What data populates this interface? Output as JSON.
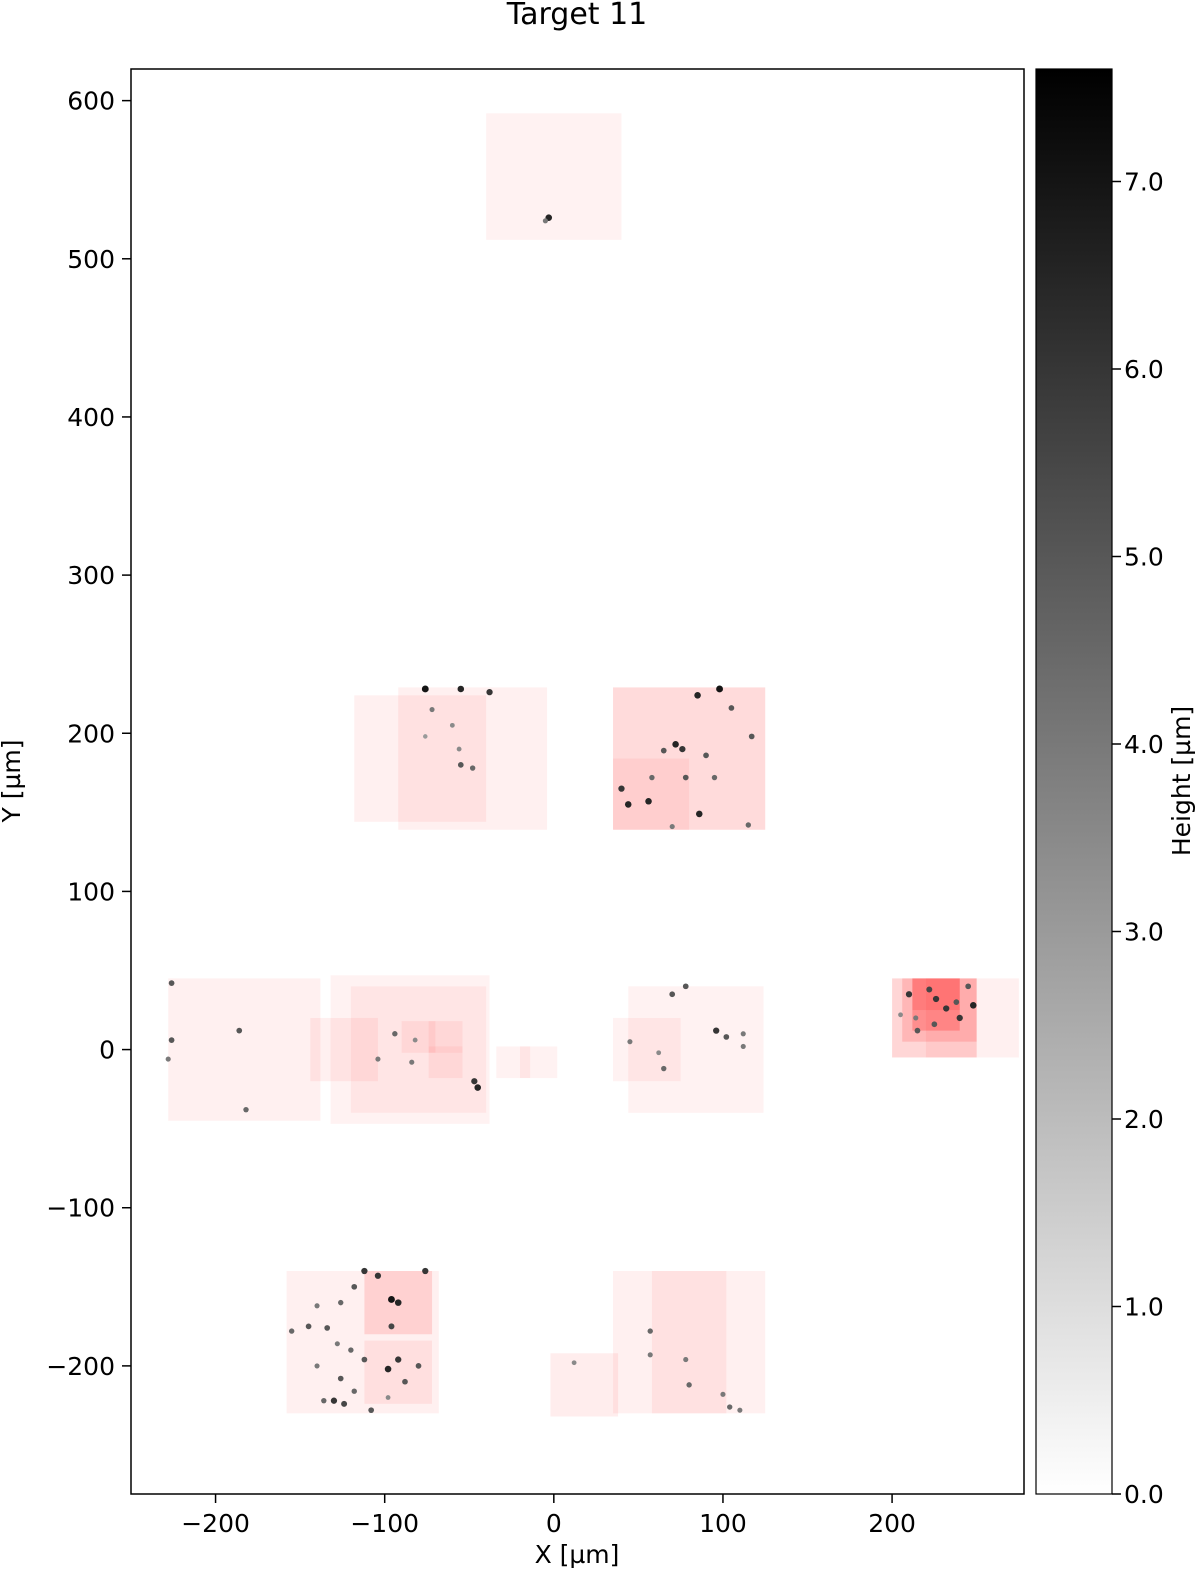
{
  "chart_data": {
    "type": "heatmap",
    "title": "Target 11",
    "xlabel": "X [µm]",
    "ylabel": "Y [µm]",
    "xlim": [
      -250,
      278
    ],
    "ylim": [
      -281,
      620
    ],
    "x_ticks": [
      -200,
      -100,
      0,
      100,
      200
    ],
    "x_tick_labels": [
      "−200",
      "−100",
      "0",
      "100",
      "200"
    ],
    "y_ticks": [
      -200,
      -100,
      0,
      100,
      200,
      300,
      400,
      500,
      600
    ],
    "y_tick_labels": [
      "−200",
      "−100",
      "0",
      "100",
      "200",
      "300",
      "400",
      "500",
      "600"
    ],
    "grid": false,
    "colorbar": {
      "label": "Height [µm]",
      "range": [
        0.0,
        7.6
      ],
      "ticks": [
        0,
        1,
        2,
        3,
        4,
        5,
        6,
        7
      ],
      "tick_labels": [
        "0.0",
        "1.0",
        "2.0",
        "3.0",
        "4.0",
        "5.0",
        "6.0",
        "7.0"
      ],
      "colormap": "gray_r"
    },
    "patch_color": "#ff0000",
    "patches": [
      {
        "x0": -40,
        "x1": 40,
        "y0": 512,
        "y1": 592,
        "opacity": 0.05
      },
      {
        "x0": -118,
        "x1": -40,
        "y0": 144,
        "y1": 224,
        "opacity": 0.06
      },
      {
        "x0": -92,
        "x1": -4,
        "y0": 139,
        "y1": 229,
        "opacity": 0.06
      },
      {
        "x0": 35,
        "x1": 125,
        "y0": 139,
        "y1": 229,
        "opacity": 0.14
      },
      {
        "x0": 35,
        "x1": 80,
        "y0": 139,
        "y1": 184,
        "opacity": 0.06
      },
      {
        "x0": -228,
        "x1": -138,
        "y0": -45,
        "y1": 45,
        "opacity": 0.06
      },
      {
        "x0": -132,
        "x1": -38,
        "y0": -47,
        "y1": 47,
        "opacity": 0.05
      },
      {
        "x0": -120,
        "x1": -40,
        "y0": -40,
        "y1": 40,
        "opacity": 0.05
      },
      {
        "x0": -144,
        "x1": -104,
        "y0": -20,
        "y1": 20,
        "opacity": 0.06
      },
      {
        "x0": -90,
        "x1": -70,
        "y0": -2,
        "y1": 18,
        "opacity": 0.06
      },
      {
        "x0": -74,
        "x1": -54,
        "y0": -18,
        "y1": 18,
        "opacity": 0.06
      },
      {
        "x0": -74,
        "x1": -54,
        "y0": -2,
        "y1": 2,
        "opacity": 0.05
      },
      {
        "x0": -34,
        "x1": -14,
        "y0": -18,
        "y1": 2,
        "opacity": 0.05
      },
      {
        "x0": -20,
        "x1": 2,
        "y0": -18,
        "y1": 2,
        "opacity": 0.05
      },
      {
        "x0": 35,
        "x1": 75,
        "y0": -20,
        "y1": 20,
        "opacity": 0.05
      },
      {
        "x0": 44,
        "x1": 124,
        "y0": -40,
        "y1": 40,
        "opacity": 0.05
      },
      {
        "x0": 200,
        "x1": 250,
        "y0": -5,
        "y1": 45,
        "opacity": 0.16
      },
      {
        "x0": 206,
        "x1": 250,
        "y0": 5,
        "y1": 45,
        "opacity": 0.14
      },
      {
        "x0": 212,
        "x1": 240,
        "y0": 12,
        "y1": 45,
        "opacity": 0.22
      },
      {
        "x0": 212,
        "x1": 240,
        "y0": 25,
        "y1": 45,
        "opacity": 0.12
      },
      {
        "x0": 220,
        "x1": 275,
        "y0": -5,
        "y1": 45,
        "opacity": 0.06
      },
      {
        "x0": -158,
        "x1": -68,
        "y0": -230,
        "y1": -140,
        "opacity": 0.06
      },
      {
        "x0": -112,
        "x1": -72,
        "y0": -180,
        "y1": -140,
        "opacity": 0.13
      },
      {
        "x0": -112,
        "x1": -72,
        "y0": -224,
        "y1": -184,
        "opacity": 0.07
      },
      {
        "x0": -2,
        "x1": 38,
        "y0": -232,
        "y1": -192,
        "opacity": 0.07
      },
      {
        "x0": 35,
        "x1": 125,
        "y0": -230,
        "y1": -140,
        "opacity": 0.06
      },
      {
        "x0": 58,
        "x1": 102,
        "y0": -230,
        "y1": -140,
        "opacity": 0.06
      }
    ],
    "dots": [
      {
        "x": -3,
        "y": 526,
        "h": 6.5
      },
      {
        "x": -5,
        "y": 524,
        "h": 4.0
      },
      {
        "x": -76,
        "y": 228,
        "h": 7.0
      },
      {
        "x": -55,
        "y": 228,
        "h": 6.5
      },
      {
        "x": -38,
        "y": 226,
        "h": 6.0
      },
      {
        "x": -72,
        "y": 215,
        "h": 4.0
      },
      {
        "x": -60,
        "y": 205,
        "h": 3.5
      },
      {
        "x": -56,
        "y": 190,
        "h": 3.5
      },
      {
        "x": -76,
        "y": 198,
        "h": 3.0
      },
      {
        "x": -55,
        "y": 180,
        "h": 5.0
      },
      {
        "x": -48,
        "y": 178,
        "h": 4.5
      },
      {
        "x": 85,
        "y": 224,
        "h": 6.5
      },
      {
        "x": 98,
        "y": 228,
        "h": 7.0
      },
      {
        "x": 105,
        "y": 216,
        "h": 5.0
      },
      {
        "x": 72,
        "y": 193,
        "h": 6.5
      },
      {
        "x": 76,
        "y": 190,
        "h": 6.0
      },
      {
        "x": 65,
        "y": 189,
        "h": 5.0
      },
      {
        "x": 90,
        "y": 186,
        "h": 5.0
      },
      {
        "x": 117,
        "y": 198,
        "h": 5.0
      },
      {
        "x": 40,
        "y": 165,
        "h": 6.0
      },
      {
        "x": 44,
        "y": 155,
        "h": 6.5
      },
      {
        "x": 56,
        "y": 157,
        "h": 6.5
      },
      {
        "x": 58,
        "y": 172,
        "h": 4.5
      },
      {
        "x": 78,
        "y": 172,
        "h": 5.0
      },
      {
        "x": 86,
        "y": 149,
        "h": 6.5
      },
      {
        "x": 95,
        "y": 172,
        "h": 4.5
      },
      {
        "x": 115,
        "y": 142,
        "h": 4.5
      },
      {
        "x": 70,
        "y": 141,
        "h": 4.0
      },
      {
        "x": -226,
        "y": 42,
        "h": 5.0
      },
      {
        "x": -226,
        "y": 6,
        "h": 5.0
      },
      {
        "x": -228,
        "y": -6,
        "h": 4.0
      },
      {
        "x": -186,
        "y": 12,
        "h": 5.0
      },
      {
        "x": -182,
        "y": -38,
        "h": 4.5
      },
      {
        "x": -104,
        "y": -6,
        "h": 4.0
      },
      {
        "x": -94,
        "y": 10,
        "h": 4.5
      },
      {
        "x": -84,
        "y": -8,
        "h": 4.0
      },
      {
        "x": -82,
        "y": 6,
        "h": 3.5
      },
      {
        "x": -45,
        "y": -24,
        "h": 6.5
      },
      {
        "x": -47,
        "y": -20,
        "h": 6.0
      },
      {
        "x": 70,
        "y": 35,
        "h": 5.0
      },
      {
        "x": 78,
        "y": 40,
        "h": 5.0
      },
      {
        "x": 96,
        "y": 12,
        "h": 6.0
      },
      {
        "x": 102,
        "y": 8,
        "h": 5.0
      },
      {
        "x": 62,
        "y": -2,
        "h": 3.5
      },
      {
        "x": 65,
        "y": -12,
        "h": 4.5
      },
      {
        "x": 112,
        "y": 2,
        "h": 4.0
      },
      {
        "x": 112,
        "y": 10,
        "h": 4.0
      },
      {
        "x": 45,
        "y": 5,
        "h": 4.0
      },
      {
        "x": 210,
        "y": 35,
        "h": 6.0
      },
      {
        "x": 222,
        "y": 38,
        "h": 5.5
      },
      {
        "x": 226,
        "y": 32,
        "h": 6.0
      },
      {
        "x": 232,
        "y": 26,
        "h": 6.0
      },
      {
        "x": 238,
        "y": 30,
        "h": 5.0
      },
      {
        "x": 245,
        "y": 40,
        "h": 5.0
      },
      {
        "x": 248,
        "y": 28,
        "h": 6.5
      },
      {
        "x": 215,
        "y": 12,
        "h": 5.0
      },
      {
        "x": 225,
        "y": 16,
        "h": 5.0
      },
      {
        "x": 240,
        "y": 20,
        "h": 6.0
      },
      {
        "x": 214,
        "y": 20,
        "h": 4.0
      },
      {
        "x": 205,
        "y": 22,
        "h": 3.5
      },
      {
        "x": -112,
        "y": -140,
        "h": 6.0
      },
      {
        "x": -104,
        "y": -143,
        "h": 6.0
      },
      {
        "x": -76,
        "y": -140,
        "h": 6.0
      },
      {
        "x": -96,
        "y": -158,
        "h": 7.0
      },
      {
        "x": -92,
        "y": -160,
        "h": 6.5
      },
      {
        "x": -96,
        "y": -175,
        "h": 5.5
      },
      {
        "x": -118,
        "y": -150,
        "h": 5.0
      },
      {
        "x": -126,
        "y": -160,
        "h": 4.5
      },
      {
        "x": -140,
        "y": -162,
        "h": 4.0
      },
      {
        "x": -155,
        "y": -178,
        "h": 4.5
      },
      {
        "x": -145,
        "y": -175,
        "h": 5.0
      },
      {
        "x": -134,
        "y": -176,
        "h": 5.0
      },
      {
        "x": -128,
        "y": -186,
        "h": 4.0
      },
      {
        "x": -120,
        "y": -190,
        "h": 4.5
      },
      {
        "x": -112,
        "y": -196,
        "h": 5.0
      },
      {
        "x": -98,
        "y": -202,
        "h": 6.5
      },
      {
        "x": -92,
        "y": -196,
        "h": 6.0
      },
      {
        "x": -88,
        "y": -210,
        "h": 5.0
      },
      {
        "x": -80,
        "y": -200,
        "h": 5.0
      },
      {
        "x": -140,
        "y": -200,
        "h": 4.0
      },
      {
        "x": -126,
        "y": -208,
        "h": 5.0
      },
      {
        "x": -118,
        "y": -216,
        "h": 4.5
      },
      {
        "x": -130,
        "y": -222,
        "h": 6.0
      },
      {
        "x": -124,
        "y": -224,
        "h": 5.5
      },
      {
        "x": -136,
        "y": -222,
        "h": 4.5
      },
      {
        "x": -108,
        "y": -228,
        "h": 5.0
      },
      {
        "x": -98,
        "y": -220,
        "h": 3.5
      },
      {
        "x": 12,
        "y": -198,
        "h": 3.5
      },
      {
        "x": 57,
        "y": -178,
        "h": 4.5
      },
      {
        "x": 57,
        "y": -193,
        "h": 4.0
      },
      {
        "x": 78,
        "y": -196,
        "h": 4.0
      },
      {
        "x": 80,
        "y": -212,
        "h": 4.5
      },
      {
        "x": 100,
        "y": -218,
        "h": 4.0
      },
      {
        "x": 104,
        "y": -226,
        "h": 4.5
      },
      {
        "x": 110,
        "y": -228,
        "h": 4.0
      }
    ]
  }
}
